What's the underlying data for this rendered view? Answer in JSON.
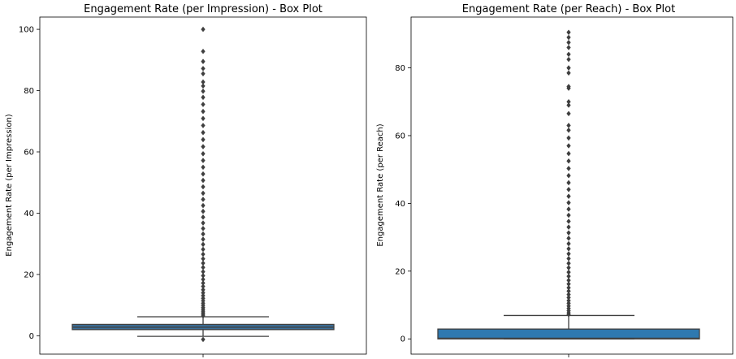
{
  "chart_data": [
    {
      "type": "box",
      "title": "Engagement Rate (per Impression) - Box Plot",
      "ylabel": "Engagement Rate (per Impression)",
      "xlabel": "",
      "ylim": [
        -6,
        104
      ],
      "yticks": [
        0,
        20,
        40,
        60,
        80,
        100
      ],
      "box": {
        "q1": 2.0,
        "median": 2.8,
        "q3": 3.7,
        "whisker_low": -0.2,
        "whisker_high": 6.2
      },
      "box_color": "#3a6e99",
      "outliers": [
        -1.2,
        6.5,
        7.0,
        7.5,
        8.0,
        8.6,
        9.2,
        9.9,
        10.6,
        11.4,
        12.2,
        13.1,
        14.0,
        15.0,
        16.1,
        17.2,
        18.4,
        19.6,
        20.9,
        22.3,
        23.7,
        25.1,
        26.6,
        28.2,
        29.8,
        31.5,
        33.2,
        35.0,
        36.8,
        38.7,
        40.6,
        42.5,
        44.5,
        46.5,
        48.6,
        50.7,
        52.8,
        55.0,
        57.2,
        59.4,
        61.7,
        64.0,
        66.3,
        68.6,
        70.9,
        73.2,
        75.5,
        77.8,
        79.8,
        81.5,
        82.8,
        85.5,
        87.2,
        89.5,
        92.8,
        100.0
      ]
    },
    {
      "type": "box",
      "title": "Engagement Rate (per Reach) - Box Plot",
      "ylabel": "Engagement Rate (per Reach)",
      "xlabel": "",
      "ylim": [
        -4.5,
        95
      ],
      "yticks": [
        0,
        20,
        40,
        60,
        80
      ],
      "box": {
        "q1": 0.0,
        "median": 0.2,
        "q3": 2.9,
        "whisker_low": 0.0,
        "whisker_high": 6.9
      },
      "box_color": "#2f79b0",
      "outliers": [
        7.2,
        7.7,
        8.3,
        9.0,
        9.7,
        10.5,
        11.3,
        12.2,
        13.1,
        14.1,
        15.1,
        16.2,
        17.3,
        18.5,
        19.7,
        21.0,
        22.3,
        23.7,
        25.1,
        26.6,
        28.1,
        29.7,
        31.3,
        33.0,
        34.7,
        36.5,
        38.3,
        40.2,
        42.1,
        44.1,
        46.1,
        48.2,
        50.3,
        52.5,
        54.7,
        57.0,
        59.3,
        61.6,
        63.0,
        66.5,
        69.0,
        70.0,
        74.0,
        74.5,
        78.5,
        80.0,
        82.5,
        84.0,
        86.0,
        87.5,
        89.0,
        90.5
      ]
    }
  ]
}
